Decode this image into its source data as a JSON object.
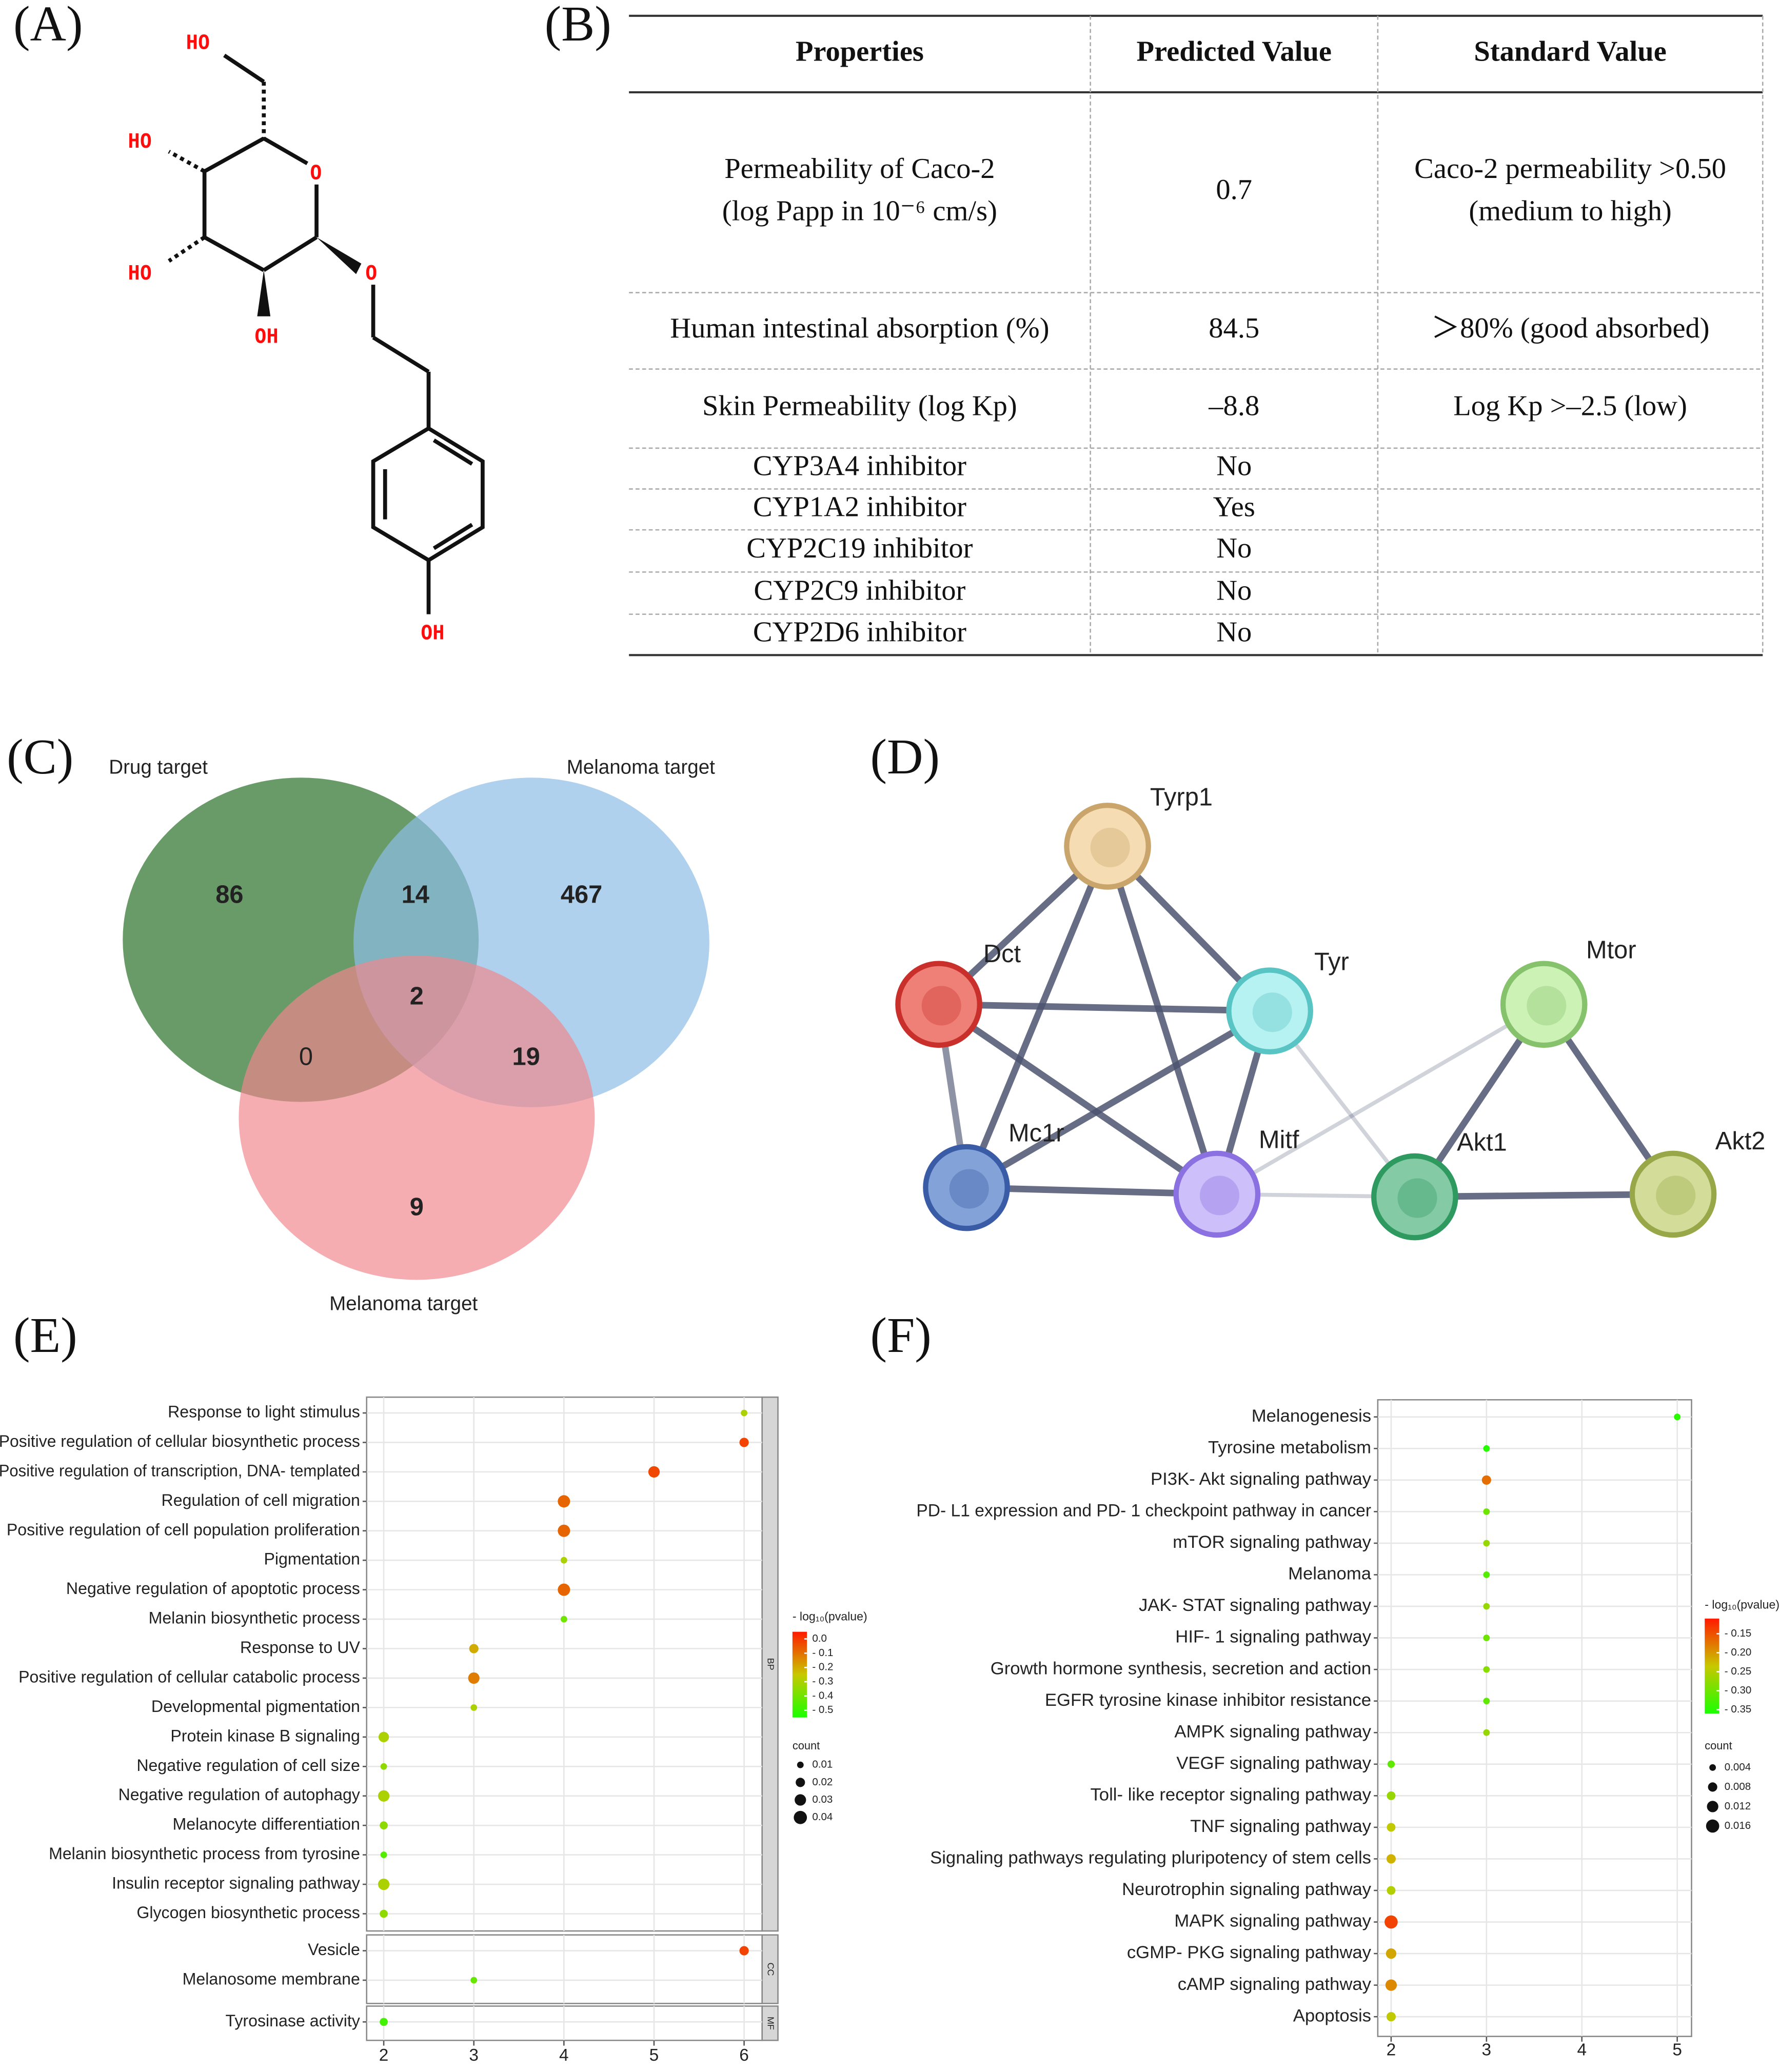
{
  "panel_labels": [
    "(A)",
    "(B)",
    "(C)",
    "(D)",
    "(E)",
    "(F)"
  ],
  "structure": {
    "labels": [
      "HO",
      "HO",
      "HO",
      "OH",
      "O",
      "O",
      "OH"
    ]
  },
  "table": {
    "header": [
      "Properties",
      "Predicted Value",
      "Standard Value"
    ],
    "rows": [
      [
        [
          "Permeability of Caco-2",
          "(log Papp in 10⁻⁶ cm/s)"
        ],
        0.7,
        [
          "Caco-2 permeability >0.50",
          "(medium to high)"
        ]
      ],
      [
        "Human intestinal absorption (%)",
        84.5,
        "＞80% (good absorbed)"
      ],
      [
        "Skin Permeability (log Kp)",
        "–8.8",
        "Log Kp >–2.5 (low)"
      ],
      [
        "CYP3A4 inhibitor",
        "No"
      ],
      [
        "CYP1A2 inhibitor",
        "Yes"
      ],
      [
        "CYP2C19 inhibitor",
        "No"
      ],
      [
        "CYP2C9 inhibitor",
        "No"
      ],
      [
        "CYP2D6 inhibitor",
        "No"
      ]
    ]
  },
  "venn": {
    "sets": [
      "Drug target",
      "Melanoma target",
      "Melanoma target"
    ],
    "counts": [
      86,
      14,
      467,
      2,
      0,
      19,
      9
    ]
  },
  "network": {
    "nodes": [
      "Tyrp1",
      "Dct",
      "Tyr",
      "Mtor",
      "Mc1r",
      "Mitf",
      "Akt1",
      "Akt2"
    ]
  },
  "chart_data": [
    {
      "type": "dot",
      "xlim": [
        1.81,
        6.2
      ],
      "xticks": [
        2,
        3,
        4,
        5,
        6
      ],
      "color_scale": {
        "title": "- log₁₀(pvalue)",
        "lim": [
          -0.55,
          0.05
        ],
        "colors": [
          "#1aff00",
          "#c8c800",
          "#ff1a00"
        ],
        "ticks": [
          {
            "value": 0,
            "label": "0.0"
          },
          {
            "value": -0.1,
            "label": "- 0.1"
          },
          {
            "value": -0.2,
            "label": "- 0.2"
          },
          {
            "value": -0.3,
            "label": "- 0.3"
          },
          {
            "value": -0.4,
            "label": "- 0.4"
          },
          {
            "value": -0.5,
            "label": "- 0.5"
          }
        ]
      },
      "size_scale": {
        "title": "count",
        "ticks": [
          0.01,
          0.02,
          0.03,
          0.04
        ]
      },
      "facets": [
        {
          "label": "BP",
          "terms": [
            {
              "name": "Response to light stimulus",
              "x": 6,
              "count": 0.01,
              "color_value": -0.3
            },
            {
              "name": "Positive regulation of cellular biosynthetic process",
              "x": 6,
              "count": 0.02,
              "color_value": -0.02
            },
            {
              "name": "Positive regulation of transcription, DNA- templated",
              "x": 5,
              "count": 0.03,
              "color_value": -0.03
            },
            {
              "name": "Regulation of cell migration",
              "x": 4,
              "count": 0.035,
              "color_value": -0.08
            },
            {
              "name": "Positive regulation of cell population proliferation",
              "x": 4,
              "count": 0.035,
              "color_value": -0.08
            },
            {
              "name": "Pigmentation",
              "x": 4,
              "count": 0.01,
              "color_value": -0.3
            },
            {
              "name": "Negative regulation of apoptotic process",
              "x": 4,
              "count": 0.035,
              "color_value": -0.08
            },
            {
              "name": "Melanin biosynthetic process",
              "x": 4,
              "count": 0.01,
              "color_value": -0.4
            },
            {
              "name": "Response to UV",
              "x": 3,
              "count": 0.02,
              "color_value": -0.2
            },
            {
              "name": "Positive regulation of cellular catabolic process",
              "x": 3,
              "count": 0.03,
              "color_value": -0.12
            },
            {
              "name": "Developmental pigmentation",
              "x": 3,
              "count": 0.01,
              "color_value": -0.3
            },
            {
              "name": "Protein kinase B signaling",
              "x": 2,
              "count": 0.025,
              "color_value": -0.3
            },
            {
              "name": "Negative regulation of cell size",
              "x": 2,
              "count": 0.01,
              "color_value": -0.35
            },
            {
              "name": "Negative regulation of autophagy",
              "x": 2,
              "count": 0.03,
              "color_value": -0.3
            },
            {
              "name": "Melanocyte differentiation",
              "x": 2,
              "count": 0.015,
              "color_value": -0.35
            },
            {
              "name": "Melanin biosynthetic process from tyrosine",
              "x": 2,
              "count": 0.01,
              "color_value": -0.45
            },
            {
              "name": "Insulin receptor signaling pathway",
              "x": 2,
              "count": 0.03,
              "color_value": -0.3
            },
            {
              "name": "Glycogen biosynthetic process",
              "x": 2,
              "count": 0.015,
              "color_value": -0.35
            }
          ]
        },
        {
          "label": "CC",
          "terms": [
            {
              "name": "Vesicle",
              "x": 6,
              "count": 0.02,
              "color_value": -0.02
            },
            {
              "name": "Melanosome membrane",
              "x": 3,
              "count": 0.01,
              "color_value": -0.42
            }
          ]
        },
        {
          "label": "MF",
          "terms": [
            {
              "name": "Tyrosinase activity",
              "x": 2,
              "count": 0.015,
              "color_value": -0.48
            }
          ]
        }
      ]
    },
    {
      "type": "dot",
      "xlim": [
        1.86,
        5.15
      ],
      "xticks": [
        2,
        3,
        4,
        5
      ],
      "color_scale": {
        "title": "- log₁₀(pvalue)",
        "lim": [
          -0.36,
          -0.11
        ],
        "colors": [
          "#1aff00",
          "#c8c800",
          "#ff1a00"
        ],
        "ticks": [
          {
            "value": -0.15,
            "label": "- 0.15"
          },
          {
            "value": -0.2,
            "label": "- 0.20"
          },
          {
            "value": -0.25,
            "label": "- 0.25"
          },
          {
            "value": -0.3,
            "label": "- 0.30"
          },
          {
            "value": -0.35,
            "label": "- 0.35"
          }
        ]
      },
      "size_scale": {
        "title": "count",
        "ticks": [
          0.004,
          0.008,
          0.012,
          0.016
        ]
      },
      "facets": [
        {
          "terms": [
            {
              "name": "Melanogenesis",
              "x": 5,
              "count": 0.004,
              "color_value": -0.35
            },
            {
              "name": "Tyrosine metabolism",
              "x": 3,
              "count": 0.004,
              "color_value": -0.35
            },
            {
              "name": "PI3K- Akt signaling pathway",
              "x": 3,
              "count": 0.008,
              "color_value": -0.17
            },
            {
              "name": "PD- L1 expression and PD- 1 checkpoint pathway in cancer",
              "x": 3,
              "count": 0.004,
              "color_value": -0.3
            },
            {
              "name": "mTOR signaling pathway",
              "x": 3,
              "count": 0.004,
              "color_value": -0.27
            },
            {
              "name": "Melanoma",
              "x": 3,
              "count": 0.004,
              "color_value": -0.32
            },
            {
              "name": "JAK- STAT signaling pathway",
              "x": 3,
              "count": 0.004,
              "color_value": -0.27
            },
            {
              "name": "HIF- 1 signaling pathway",
              "x": 3,
              "count": 0.004,
              "color_value": -0.3
            },
            {
              "name": "Growth hormone synthesis, secretion and action",
              "x": 3,
              "count": 0.004,
              "color_value": -0.28
            },
            {
              "name": "EGFR tyrosine kinase inhibitor resistance",
              "x": 3,
              "count": 0.004,
              "color_value": -0.31
            },
            {
              "name": "AMPK signaling pathway",
              "x": 3,
              "count": 0.004,
              "color_value": -0.27
            },
            {
              "name": "VEGF signaling pathway",
              "x": 2,
              "count": 0.005,
              "color_value": -0.31
            },
            {
              "name": "Toll- like receptor signaling pathway",
              "x": 2,
              "count": 0.007,
              "color_value": -0.27
            },
            {
              "name": "TNF signaling pathway",
              "x": 2,
              "count": 0.007,
              "color_value": -0.24
            },
            {
              "name": "Signaling pathways regulating pluripotency of stem cells",
              "x": 2,
              "count": 0.008,
              "color_value": -0.22
            },
            {
              "name": "Neurotrophin signaling pathway",
              "x": 2,
              "count": 0.007,
              "color_value": -0.25
            },
            {
              "name": "MAPK signaling pathway",
              "x": 2,
              "count": 0.016,
              "color_value": -0.14
            },
            {
              "name": "cGMP- PKG signaling pathway",
              "x": 2,
              "count": 0.01,
              "color_value": -0.21
            },
            {
              "name": "cAMP signaling pathway",
              "x": 2,
              "count": 0.012,
              "color_value": -0.19
            },
            {
              "name": "Apoptosis",
              "x": 2,
              "count": 0.008,
              "color_value": -0.24
            }
          ]
        }
      ]
    }
  ]
}
